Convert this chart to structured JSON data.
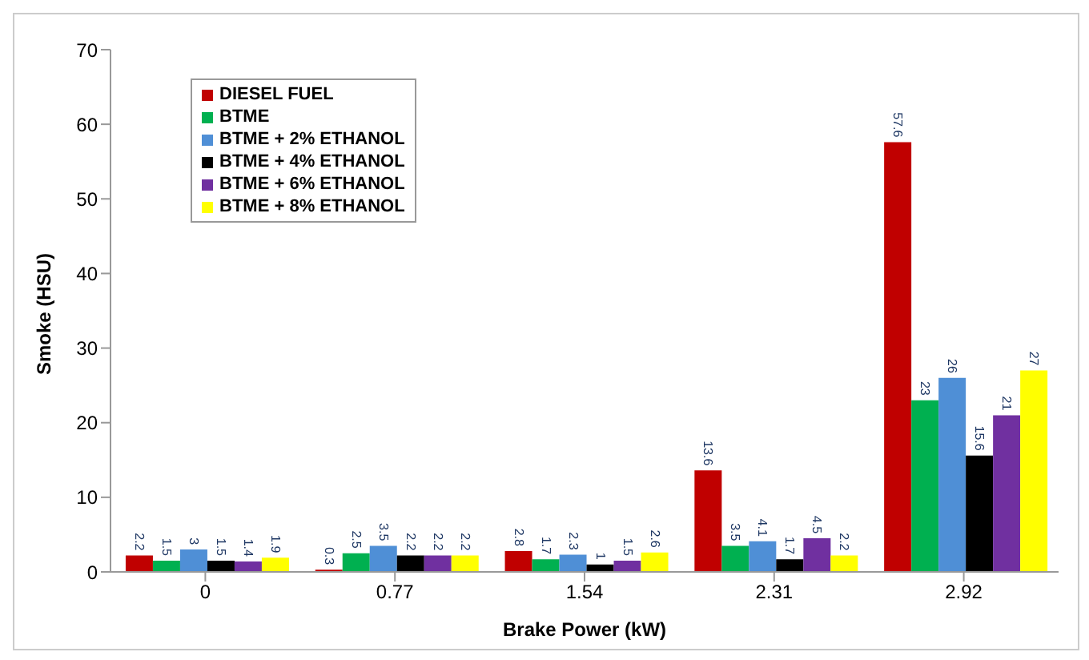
{
  "chart_data": {
    "type": "bar",
    "xlabel": "Brake Power (kW)",
    "ylabel": "Smoke (HSU)",
    "categories": [
      "0",
      "0.77",
      "1.54",
      "2.31",
      "2.92"
    ],
    "series": [
      {
        "name": "DIESEL FUEL",
        "color": "#c00000",
        "values": [
          2.2,
          0.3,
          2.8,
          13.6,
          57.6
        ]
      },
      {
        "name": "BTME",
        "color": "#00b050",
        "values": [
          1.5,
          2.5,
          1.7,
          3.5,
          23
        ]
      },
      {
        "name": "BTME + 2% ETHANOL",
        "color": "#4f8fd6",
        "values": [
          3,
          3.5,
          2.3,
          4.1,
          26
        ]
      },
      {
        "name": "BTME + 4% ETHANOL",
        "color": "#000000",
        "values": [
          1.5,
          2.2,
          1,
          1.7,
          15.6
        ]
      },
      {
        "name": "BTME + 6% ETHANOL",
        "color": "#7030a0",
        "values": [
          1.4,
          2.2,
          1.5,
          4.5,
          21
        ]
      },
      {
        "name": "BTME + 8% ETHANOL",
        "color": "#ffff00",
        "values": [
          1.9,
          2.2,
          2.6,
          2.2,
          27
        ]
      }
    ],
    "ylim": [
      0,
      70
    ],
    "yticks": [
      0,
      10,
      20,
      30,
      40,
      50,
      60,
      70
    ],
    "grid": false,
    "legend": "top left",
    "data_labels": true
  }
}
